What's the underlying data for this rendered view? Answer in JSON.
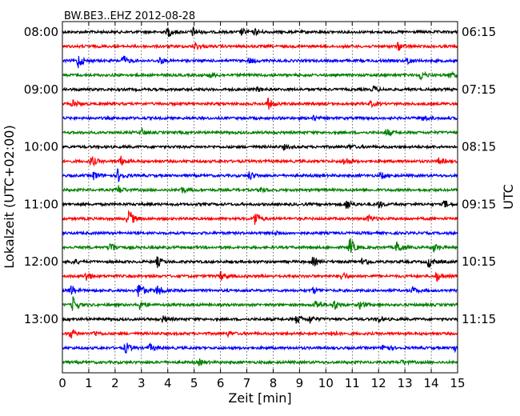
{
  "chart_data": {
    "type": "line",
    "title": "BW.BE3..EHZ 2012-08-28",
    "xlabel": "Zeit  [min]",
    "ylabel_left": "Lokalzeit (UTC+02:00)",
    "ylabel_right": "UTC",
    "xlim": [
      0,
      15
    ],
    "x_ticks": [
      "0",
      "1",
      "2",
      "3",
      "4",
      "5",
      "6",
      "7",
      "8",
      "9",
      "10",
      "11",
      "12",
      "13",
      "14",
      "15"
    ],
    "grid": "vertical dotted",
    "trace_colors": [
      "#000000",
      "#ff0000",
      "#0000ff",
      "#008000"
    ],
    "left_time_labels": [
      "08:00",
      "09:00",
      "10:00",
      "11:00",
      "12:00",
      "13:00"
    ],
    "right_time_labels": [
      "06:15",
      "07:15",
      "08:15",
      "09:15",
      "10:15",
      "11:15"
    ],
    "traces": [
      {
        "events": [
          [
            4.0,
            1.0
          ],
          [
            4.95,
            0.8
          ],
          [
            6.8,
            0.6
          ],
          [
            7.3,
            0.5
          ]
        ]
      },
      {
        "events": [
          [
            5.05,
            0.7
          ],
          [
            12.75,
            0.7
          ]
        ]
      },
      {
        "events": [
          [
            0.6,
            1.3
          ],
          [
            2.3,
            1.0
          ],
          [
            3.7,
            0.6
          ],
          [
            7.1,
            0.5
          ],
          [
            13.1,
            0.7
          ]
        ]
      },
      {
        "events": [
          [
            5.6,
            0.5
          ],
          [
            13.6,
            0.8
          ],
          [
            14.7,
            0.6
          ]
        ]
      },
      {
        "events": [
          [
            7.4,
            0.4
          ],
          [
            11.8,
            0.5
          ]
        ]
      },
      {
        "events": [
          [
            0.4,
            0.7
          ],
          [
            7.8,
            1.0
          ],
          [
            11.7,
            0.5
          ]
        ]
      },
      {
        "events": [
          [
            9.5,
            0.4
          ],
          [
            13.7,
            0.5
          ]
        ]
      },
      {
        "events": [
          [
            3.0,
            0.6
          ],
          [
            12.3,
            0.7
          ]
        ]
      },
      {
        "events": [
          [
            8.4,
            0.4
          ],
          [
            10.9,
            0.4
          ]
        ]
      },
      {
        "events": [
          [
            1.1,
            1.0
          ],
          [
            2.2,
            0.9
          ],
          [
            10.7,
            0.8
          ],
          [
            14.3,
            0.6
          ]
        ]
      },
      {
        "events": [
          [
            1.2,
            0.8
          ],
          [
            2.1,
            1.2
          ],
          [
            7.1,
            0.8
          ],
          [
            12.1,
            0.6
          ]
        ]
      },
      {
        "events": [
          [
            2.1,
            0.9
          ],
          [
            4.5,
            0.6
          ],
          [
            7.5,
            0.5
          ]
        ]
      },
      {
        "events": [
          [
            10.8,
            1.0
          ],
          [
            12.0,
            0.6
          ],
          [
            14.5,
            0.7
          ]
        ]
      },
      {
        "events": [
          [
            2.5,
            2.0
          ],
          [
            7.3,
            1.5
          ],
          [
            11.6,
            0.7
          ]
        ]
      },
      {
        "events": [
          [
            8.1,
            0.4
          ]
        ]
      },
      {
        "events": [
          [
            1.8,
            1.2
          ],
          [
            10.9,
            1.8
          ],
          [
            12.7,
            1.2
          ],
          [
            14.1,
            0.7
          ]
        ]
      },
      {
        "events": [
          [
            0.4,
            0.6
          ],
          [
            3.6,
            0.9
          ],
          [
            9.5,
            0.8
          ],
          [
            11.4,
            0.9
          ],
          [
            13.9,
            1.0
          ]
        ]
      },
      {
        "events": [
          [
            0.9,
            0.9
          ],
          [
            6.0,
            0.8
          ],
          [
            10.6,
            0.8
          ],
          [
            14.2,
            0.9
          ]
        ]
      },
      {
        "events": [
          [
            0.3,
            1.1
          ],
          [
            2.9,
            1.6
          ],
          [
            3.6,
            1.0
          ],
          [
            9.5,
            0.5
          ],
          [
            13.3,
            0.6
          ]
        ]
      },
      {
        "events": [
          [
            0.4,
            1.4
          ],
          [
            2.9,
            0.9
          ],
          [
            9.6,
            0.9
          ],
          [
            10.3,
            1.0
          ],
          [
            11.3,
            0.7
          ]
        ]
      },
      {
        "events": [
          [
            3.8,
            0.6
          ],
          [
            8.9,
            0.9
          ],
          [
            9.4,
            0.7
          ],
          [
            12.0,
            0.5
          ]
        ]
      },
      {
        "events": [
          [
            0.3,
            0.9
          ],
          [
            1.2,
            0.5
          ],
          [
            6.3,
            0.4
          ],
          [
            10.2,
            0.5
          ]
        ]
      },
      {
        "events": [
          [
            2.4,
            1.0
          ],
          [
            3.3,
            0.7
          ],
          [
            12.2,
            0.8
          ],
          [
            14.9,
            0.6
          ]
        ]
      },
      {
        "events": [
          [
            5.2,
            0.5
          ],
          [
            12.9,
            0.4
          ]
        ]
      }
    ]
  }
}
